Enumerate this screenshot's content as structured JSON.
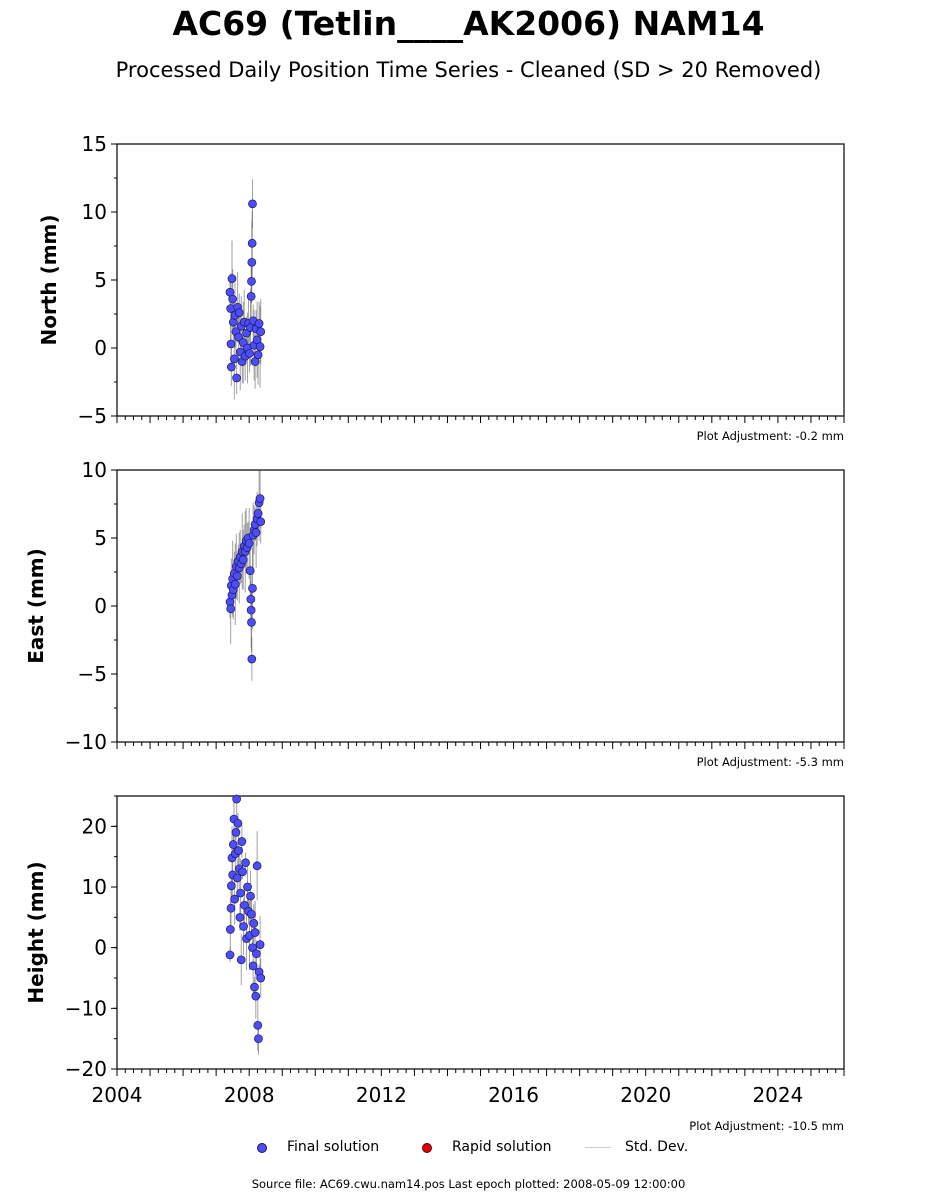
{
  "title": "AC69 (Tetlin____AK2006) NAM14",
  "subtitle": "Processed Daily Position Time Series - Cleaned (SD > 20 Removed)",
  "legend": {
    "final": "Final solution",
    "rapid": "Rapid solution",
    "stddev": "Std. Dev."
  },
  "colors": {
    "final": "#4d4dff",
    "rapid": "#e00000",
    "stddev": "#aaaaaa",
    "error_bars": "#555555"
  },
  "source_text": "Source file: AC69.cwu.nam14.pos  Last epoch plotted: 2008-05-09 12:00:00",
  "chart_data": [
    {
      "type": "scatter",
      "name": "north",
      "ylabel": "North (mm)",
      "xlim": [
        2004,
        2026
      ],
      "ylim": [
        -5,
        15
      ],
      "yticks": [
        -5,
        0,
        5,
        10,
        15
      ],
      "adjustment": "Plot Adjustment: -0.2 mm",
      "points": [
        [
          2007.42,
          4.1
        ],
        [
          2007.44,
          2.9
        ],
        [
          2007.45,
          0.3
        ],
        [
          2007.46,
          -1.4
        ],
        [
          2007.48,
          5.1
        ],
        [
          2007.5,
          3.6
        ],
        [
          2007.52,
          1.9
        ],
        [
          2007.55,
          -0.8
        ],
        [
          2007.57,
          2.4
        ],
        [
          2007.6,
          1.2
        ],
        [
          2007.62,
          -2.2
        ],
        [
          2007.65,
          3.0
        ],
        [
          2007.68,
          0.8
        ],
        [
          2007.7,
          2.6
        ],
        [
          2007.73,
          -0.3
        ],
        [
          2007.76,
          1.6
        ],
        [
          2007.79,
          -1.0
        ],
        [
          2007.82,
          0.4
        ],
        [
          2007.85,
          1.9
        ],
        [
          2007.88,
          -0.6
        ],
        [
          2007.92,
          1.1
        ],
        [
          2007.95,
          0.0
        ],
        [
          2007.98,
          1.8
        ],
        [
          2008.01,
          -0.4
        ],
        [
          2008.04,
          1.5
        ],
        [
          2008.06,
          3.8
        ],
        [
          2008.07,
          4.9
        ],
        [
          2008.08,
          6.3
        ],
        [
          2008.09,
          7.7
        ],
        [
          2008.1,
          10.6
        ],
        [
          2008.12,
          2.0
        ],
        [
          2008.15,
          0.2
        ],
        [
          2008.18,
          -1.0
        ],
        [
          2008.21,
          1.4
        ],
        [
          2008.24,
          0.6
        ],
        [
          2008.27,
          -0.5
        ],
        [
          2008.3,
          1.8
        ],
        [
          2008.33,
          0.1
        ],
        [
          2008.35,
          1.2
        ]
      ]
    },
    {
      "type": "scatter",
      "name": "east",
      "ylabel": "East (mm)",
      "xlim": [
        2004,
        2026
      ],
      "ylim": [
        -10,
        10
      ],
      "yticks": [
        -10,
        -5,
        0,
        5,
        10
      ],
      "adjustment": "Plot Adjustment: -5.3 mm",
      "points": [
        [
          2007.42,
          0.3
        ],
        [
          2007.44,
          -0.2
        ],
        [
          2007.46,
          1.5
        ],
        [
          2007.48,
          0.8
        ],
        [
          2007.5,
          2.0
        ],
        [
          2007.52,
          1.2
        ],
        [
          2007.55,
          2.4
        ],
        [
          2007.58,
          1.6
        ],
        [
          2007.61,
          2.9
        ],
        [
          2007.64,
          2.2
        ],
        [
          2007.67,
          3.3
        ],
        [
          2007.7,
          2.8
        ],
        [
          2007.73,
          3.6
        ],
        [
          2007.76,
          3.1
        ],
        [
          2007.79,
          4.0
        ],
        [
          2007.82,
          3.4
        ],
        [
          2007.85,
          4.4
        ],
        [
          2007.88,
          4.0
        ],
        [
          2007.91,
          4.8
        ],
        [
          2007.94,
          4.3
        ],
        [
          2007.97,
          5.0
        ],
        [
          2008.0,
          4.6
        ],
        [
          2008.03,
          2.6
        ],
        [
          2008.05,
          0.5
        ],
        [
          2008.06,
          -0.3
        ],
        [
          2008.07,
          -1.2
        ],
        [
          2008.08,
          -3.9
        ],
        [
          2008.1,
          1.3
        ],
        [
          2008.12,
          5.2
        ],
        [
          2008.15,
          5.6
        ],
        [
          2008.18,
          6.0
        ],
        [
          2008.21,
          5.4
        ],
        [
          2008.24,
          6.4
        ],
        [
          2008.27,
          6.8
        ],
        [
          2008.3,
          7.6
        ],
        [
          2008.33,
          7.9
        ],
        [
          2008.35,
          6.2
        ]
      ]
    },
    {
      "type": "scatter",
      "name": "height",
      "ylabel": "Height (mm)",
      "xlim": [
        2004,
        2026
      ],
      "ylim": [
        -20,
        25
      ],
      "yticks": [
        -20,
        -10,
        0,
        10,
        20
      ],
      "xticks": [
        2004,
        2008,
        2012,
        2016,
        2020,
        2024
      ],
      "adjustment": "Plot Adjustment: -10.5 mm",
      "points": [
        [
          2007.42,
          -1.2
        ],
        [
          2007.43,
          3.0
        ],
        [
          2007.45,
          6.5
        ],
        [
          2007.46,
          10.2
        ],
        [
          2007.48,
          14.8
        ],
        [
          2007.5,
          12.0
        ],
        [
          2007.52,
          17.0
        ],
        [
          2007.54,
          21.2
        ],
        [
          2007.56,
          8.0
        ],
        [
          2007.58,
          15.5
        ],
        [
          2007.6,
          19.0
        ],
        [
          2007.62,
          24.5
        ],
        [
          2007.64,
          11.5
        ],
        [
          2007.66,
          20.5
        ],
        [
          2007.68,
          16.0
        ],
        [
          2007.7,
          13.0
        ],
        [
          2007.72,
          5.0
        ],
        [
          2007.74,
          9.0
        ],
        [
          2007.76,
          -2.0
        ],
        [
          2007.78,
          17.5
        ],
        [
          2007.8,
          12.5
        ],
        [
          2007.83,
          3.5
        ],
        [
          2007.86,
          7.0
        ],
        [
          2007.89,
          14.0
        ],
        [
          2007.92,
          1.5
        ],
        [
          2007.95,
          10.0
        ],
        [
          2007.98,
          6.0
        ],
        [
          2008.01,
          2.0
        ],
        [
          2008.04,
          8.5
        ],
        [
          2008.07,
          5.5
        ],
        [
          2008.1,
          0.0
        ],
        [
          2008.12,
          -3.0
        ],
        [
          2008.14,
          4.0
        ],
        [
          2008.16,
          -6.5
        ],
        [
          2008.18,
          2.5
        ],
        [
          2008.2,
          -8.0
        ],
        [
          2008.22,
          -1.0
        ],
        [
          2008.24,
          13.5
        ],
        [
          2008.26,
          -12.8
        ],
        [
          2008.28,
          -15.0
        ],
        [
          2008.3,
          -4.0
        ],
        [
          2008.33,
          0.5
        ],
        [
          2008.35,
          -5.0
        ]
      ]
    }
  ]
}
